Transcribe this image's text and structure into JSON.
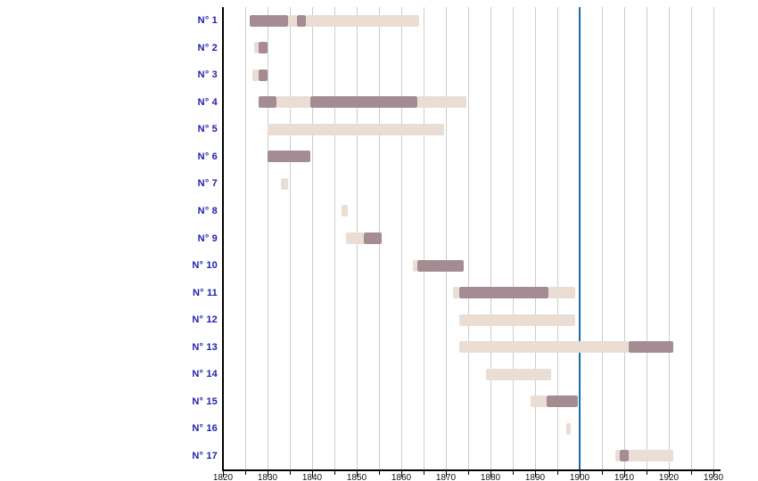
{
  "chart_data": {
    "type": "gantt",
    "title": "",
    "xlabel": "",
    "ylabel": "",
    "x_axis": {
      "min": 1820,
      "max": 1930,
      "major_step": 10,
      "gridline_step": 5,
      "tick_labels": [
        "1820",
        "1830",
        "1840",
        "1850",
        "1860",
        "1870",
        "1880",
        "1890",
        "1900",
        "1910",
        "1920",
        "1930"
      ]
    },
    "reference_line": {
      "year": 1900
    },
    "colors": {
      "bar_dark": "#a48c92",
      "bar_light": "#e9ddd4",
      "reference_line": "#1a6ca8",
      "gridline": "#cccccc",
      "axis": "#000000",
      "row_label": "#1f1fae",
      "tick_label": "#111111"
    },
    "rows": [
      {
        "label": "N° 1",
        "segments": [
          {
            "start": 1826,
            "end": 1834.5,
            "shade": "dark"
          },
          {
            "start": 1834.5,
            "end": 1836.5,
            "shade": "light"
          },
          {
            "start": 1836.5,
            "end": 1838.5,
            "shade": "dark"
          },
          {
            "start": 1838.5,
            "end": 1864,
            "shade": "light"
          }
        ]
      },
      {
        "label": "N° 2",
        "segments": [
          {
            "start": 1827,
            "end": 1828,
            "shade": "light"
          },
          {
            "start": 1828,
            "end": 1830,
            "shade": "dark"
          }
        ]
      },
      {
        "label": "N° 3",
        "segments": [
          {
            "start": 1826.5,
            "end": 1828,
            "shade": "light"
          },
          {
            "start": 1828,
            "end": 1830,
            "shade": "dark"
          }
        ]
      },
      {
        "label": "N° 4",
        "segments": [
          {
            "start": 1828,
            "end": 1832,
            "shade": "dark"
          },
          {
            "start": 1832,
            "end": 1839.5,
            "shade": "light"
          },
          {
            "start": 1839.5,
            "end": 1863.5,
            "shade": "dark"
          },
          {
            "start": 1863.5,
            "end": 1874.5,
            "shade": "light"
          }
        ]
      },
      {
        "label": "N° 5",
        "segments": [
          {
            "start": 1830,
            "end": 1869.5,
            "shade": "light"
          }
        ]
      },
      {
        "label": "N° 6",
        "segments": [
          {
            "start": 1830,
            "end": 1839.5,
            "shade": "dark"
          }
        ]
      },
      {
        "label": "N° 7",
        "segments": [
          {
            "start": 1833,
            "end": 1834.5,
            "shade": "light"
          }
        ]
      },
      {
        "label": "N° 8",
        "segments": [
          {
            "start": 1846.5,
            "end": 1848,
            "shade": "light"
          }
        ]
      },
      {
        "label": "N° 9",
        "segments": [
          {
            "start": 1847.5,
            "end": 1851.5,
            "shade": "light"
          },
          {
            "start": 1851.5,
            "end": 1855.5,
            "shade": "dark"
          }
        ]
      },
      {
        "label": "N° 10",
        "segments": [
          {
            "start": 1862.5,
            "end": 1863.5,
            "shade": "light"
          },
          {
            "start": 1863.5,
            "end": 1874,
            "shade": "dark"
          }
        ]
      },
      {
        "label": "N° 11",
        "segments": [
          {
            "start": 1871.5,
            "end": 1873,
            "shade": "light"
          },
          {
            "start": 1873,
            "end": 1893,
            "shade": "dark"
          },
          {
            "start": 1893,
            "end": 1899,
            "shade": "light"
          }
        ]
      },
      {
        "label": "N° 12",
        "segments": [
          {
            "start": 1873,
            "end": 1899,
            "shade": "light"
          }
        ]
      },
      {
        "label": "N° 13",
        "segments": [
          {
            "start": 1873,
            "end": 1911,
            "shade": "light"
          },
          {
            "start": 1911,
            "end": 1921,
            "shade": "dark"
          }
        ]
      },
      {
        "label": "N° 14",
        "segments": [
          {
            "start": 1879,
            "end": 1893.5,
            "shade": "light"
          }
        ]
      },
      {
        "label": "N° 15",
        "segments": [
          {
            "start": 1889,
            "end": 1892.5,
            "shade": "light"
          },
          {
            "start": 1892.5,
            "end": 1899.5,
            "shade": "dark"
          }
        ]
      },
      {
        "label": "N° 16",
        "segments": [
          {
            "start": 1897,
            "end": 1898,
            "shade": "light"
          }
        ]
      },
      {
        "label": "N° 17",
        "segments": [
          {
            "start": 1908,
            "end": 1909,
            "shade": "light"
          },
          {
            "start": 1909,
            "end": 1911,
            "shade": "dark"
          },
          {
            "start": 1911,
            "end": 1921,
            "shade": "light"
          }
        ]
      }
    ]
  }
}
